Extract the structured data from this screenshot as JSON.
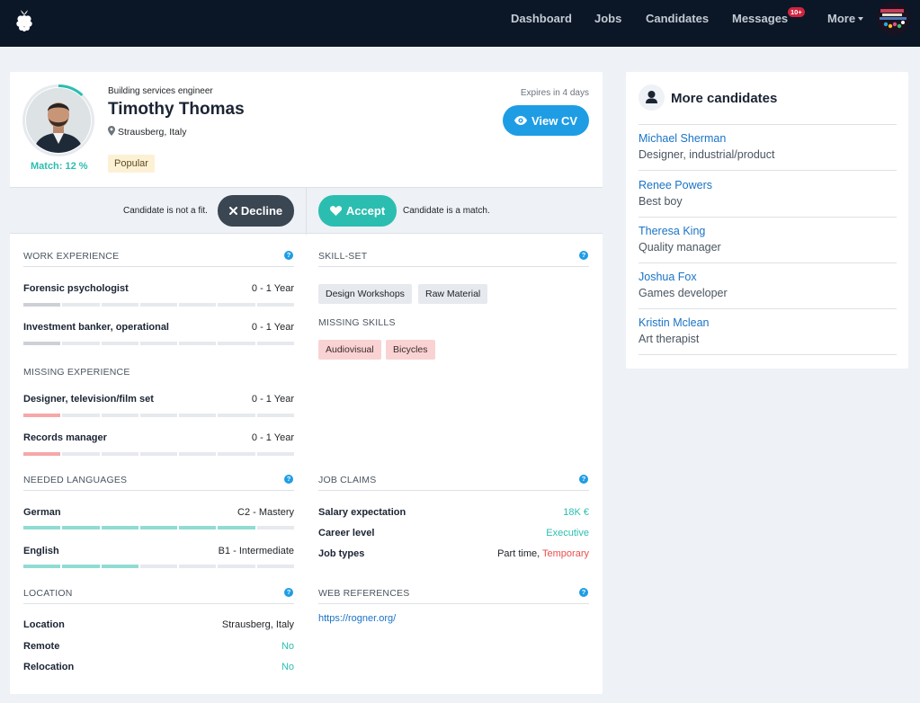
{
  "nav": {
    "items": [
      "Dashboard",
      "Jobs",
      "Candidates",
      "Messages",
      "More"
    ],
    "messages_badge": "10+"
  },
  "candidate": {
    "occupation": "Building services engineer",
    "name": "Timothy Thomas",
    "location": "Strausberg, Italy",
    "match_label": "Match: 12 %",
    "match_percent": 12,
    "tag": "Popular",
    "expires": "Expires in 4 days",
    "view_cv": "View CV"
  },
  "decision": {
    "not_fit_text": "Candidate is not a fit.",
    "decline_label": "Decline",
    "accept_label": "Accept",
    "match_text": "Candidate is a match."
  },
  "work_experience": {
    "heading": "WORK EXPERIENCE",
    "items": [
      {
        "label": "Forensic psychologist",
        "value": "0 - 1 Year",
        "level": 1
      },
      {
        "label": "Investment banker, operational",
        "value": "0 - 1 Year",
        "level": 1
      }
    ]
  },
  "missing_experience": {
    "heading": "MISSING EXPERIENCE",
    "items": [
      {
        "label": "Designer, television/film set",
        "value": "0 - 1 Year",
        "level": 1
      },
      {
        "label": "Records manager",
        "value": "0 - 1 Year",
        "level": 1
      }
    ]
  },
  "skill_set": {
    "heading": "SKILL-SET",
    "skills": [
      "Design Workshops",
      "Raw Material"
    ],
    "missing_heading": "MISSING SKILLS",
    "missing": [
      "Audiovisual",
      "Bicycles"
    ]
  },
  "languages": {
    "heading": "NEEDED LANGUAGES",
    "items": [
      {
        "label": "German",
        "value": "C2 - Mastery",
        "level": 6
      },
      {
        "label": "English",
        "value": "B1 - Intermediate",
        "level": 3
      }
    ]
  },
  "job_claims": {
    "heading": "JOB CLAIMS",
    "salary_label": "Salary expectation",
    "salary_value": "18K €",
    "career_label": "Career level",
    "career_value": "Executive",
    "types_label": "Job types",
    "types_value_plain": "Part time, ",
    "types_value_highlight": "Temporary"
  },
  "location_section": {
    "heading": "LOCATION",
    "location_label": "Location",
    "location_value": "Strausberg, Italy",
    "remote_label": "Remote",
    "remote_value": "No",
    "relocation_label": "Relocation",
    "relocation_value": "No"
  },
  "web_references": {
    "heading": "WEB REFERENCES",
    "url": "https://rogner.org/"
  },
  "more_candidates": {
    "title": "More candidates",
    "items": [
      {
        "name": "Michael Sherman",
        "role": "Designer, industrial/product"
      },
      {
        "name": "Renee Powers",
        "role": "Best boy"
      },
      {
        "name": "Theresa King",
        "role": "Quality manager"
      },
      {
        "name": "Joshua Fox",
        "role": "Games developer"
      },
      {
        "name": "Kristin Mclean",
        "role": "Art therapist"
      }
    ]
  },
  "colors": {
    "navbar": "#0b1727",
    "primary": "#1e9de5",
    "teal": "#2bbeb0",
    "dark_button": "#3a4652",
    "danger": "#ea4e4e"
  },
  "icons": [
    "raspberry-logo-icon",
    "pin-icon",
    "eye-icon",
    "times-icon",
    "heart-icon",
    "question-icon",
    "user-icon"
  ]
}
